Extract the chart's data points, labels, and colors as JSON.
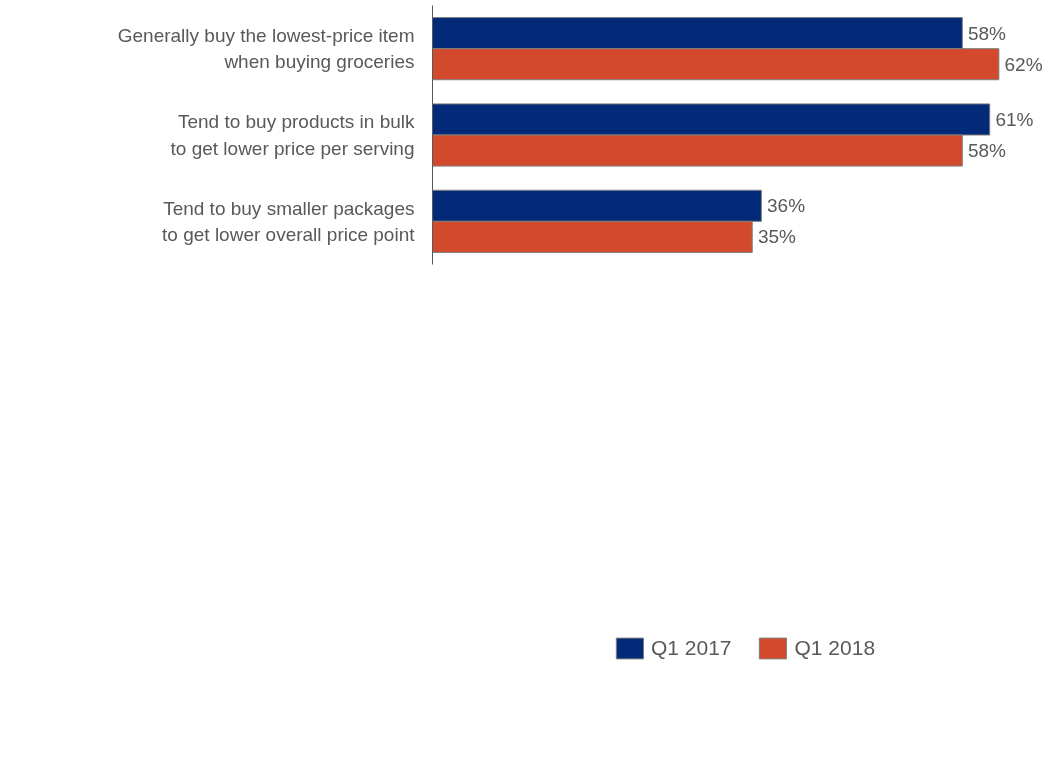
{
  "chart_data": {
    "type": "bar",
    "orientation": "horizontal",
    "categories": [
      "Generally buy the lowest-price item\nwhen buying groceries",
      "Tend to buy products in bulk\nto get lower price per serving",
      "Tend to buy smaller packages\nto get lower overall price point"
    ],
    "series": [
      {
        "name": "Q1 2017",
        "color": "#022a78",
        "values": [
          58,
          61,
          36
        ],
        "value_labels": [
          "58%",
          "61%",
          "36%"
        ]
      },
      {
        "name": "Q1 2018",
        "color": "#d24a2b",
        "values": [
          62,
          58,
          35
        ],
        "value_labels": [
          "62%",
          "58%",
          "35%"
        ]
      }
    ],
    "legend": "bottom",
    "grid": false,
    "tick_labels": "y"
  }
}
